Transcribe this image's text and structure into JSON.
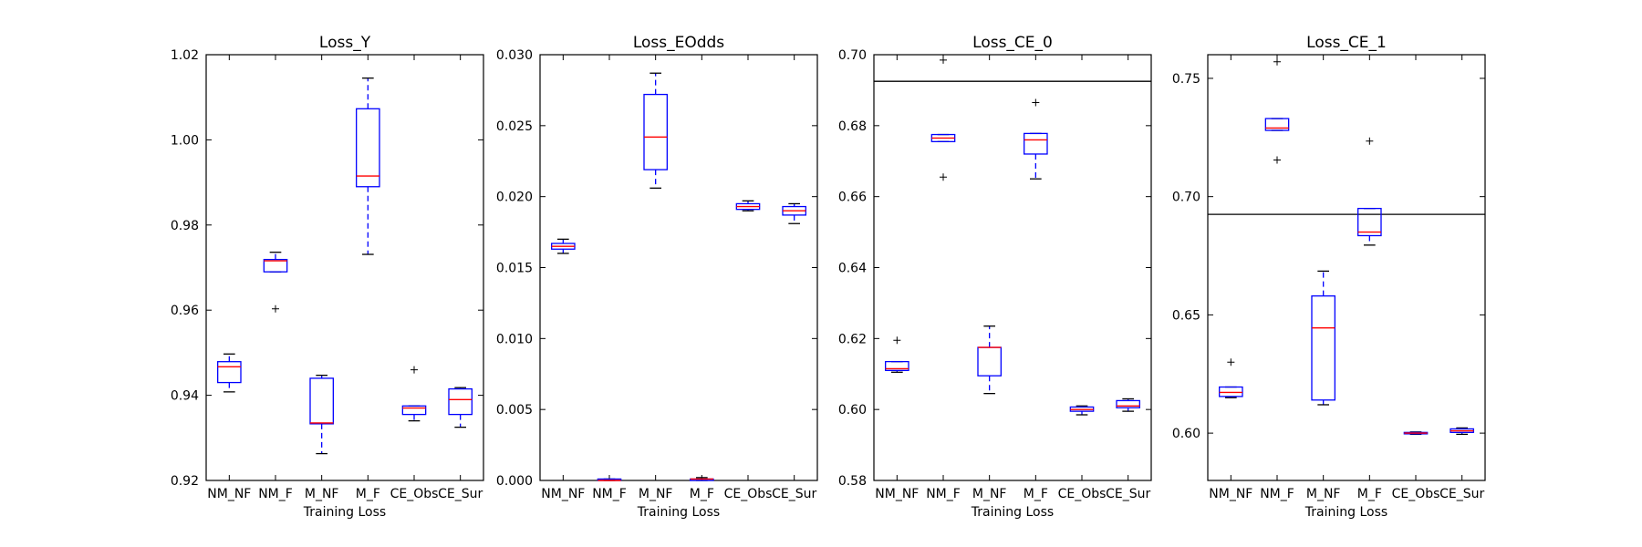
{
  "figure": {
    "box_color": "#0000ff",
    "median_color": "#ff0000",
    "flier_symbol": "+"
  },
  "chart_data": [
    {
      "type": "box",
      "title": "Loss_Y",
      "xlabel": "Training Loss",
      "ylabel": "",
      "categories": [
        "NM_NF",
        "NM_F",
        "M_NF",
        "M_F",
        "CE_Obs",
        "CE_Sur"
      ],
      "ylim": [
        0.92,
        1.02
      ],
      "yticks": [
        0.92,
        0.94,
        0.96,
        0.98,
        1.0,
        1.02
      ],
      "ytick_labels": [
        "0.92",
        "0.94",
        "0.96",
        "0.98",
        "1.00",
        "1.02"
      ],
      "hline": null,
      "boxes": [
        {
          "whislo": 0.9408,
          "q1": 0.943,
          "med": 0.9467,
          "q3": 0.9479,
          "whishi": 0.9497,
          "fliers": []
        },
        {
          "whislo": 0.969,
          "q1": 0.969,
          "med": 0.9716,
          "q3": 0.9719,
          "whishi": 0.9736,
          "fliers": [
            0.9603
          ]
        },
        {
          "whislo": 0.9263,
          "q1": 0.9333,
          "med": 0.9335,
          "q3": 0.944,
          "whishi": 0.9447,
          "fliers": []
        },
        {
          "whislo": 0.9731,
          "q1": 0.989,
          "med": 0.9915,
          "q3": 1.0073,
          "whishi": 1.0145,
          "fliers": []
        },
        {
          "whislo": 0.934,
          "q1": 0.9355,
          "med": 0.937,
          "q3": 0.9375,
          "whishi": 0.9375,
          "fliers": [
            0.946
          ]
        },
        {
          "whislo": 0.9325,
          "q1": 0.9355,
          "med": 0.939,
          "q3": 0.9415,
          "whishi": 0.9418,
          "fliers": []
        }
      ]
    },
    {
      "type": "box",
      "title": "Loss_EOdds",
      "xlabel": "Training Loss",
      "ylabel": "",
      "categories": [
        "NM_NF",
        "NM_F",
        "M_NF",
        "M_F",
        "CE_Obs",
        "CE_Sur"
      ],
      "ylim": [
        0.0,
        0.03
      ],
      "yticks": [
        0.0,
        0.005,
        0.01,
        0.015,
        0.02,
        0.025,
        0.03
      ],
      "ytick_labels": [
        "0.000",
        "0.005",
        "0.010",
        "0.015",
        "0.020",
        "0.025",
        "0.030"
      ],
      "hline": null,
      "boxes": [
        {
          "whislo": 0.016,
          "q1": 0.0163,
          "med": 0.0165,
          "q3": 0.0167,
          "whishi": 0.017,
          "fliers": []
        },
        {
          "whislo": 0.0,
          "q1": 0.0,
          "med": 0.0,
          "q3": 0.0001,
          "whishi": 0.0001,
          "fliers": []
        },
        {
          "whislo": 0.0206,
          "q1": 0.0219,
          "med": 0.0242,
          "q3": 0.0272,
          "whishi": 0.0287,
          "fliers": []
        },
        {
          "whislo": 0.0,
          "q1": 0.0,
          "med": 0.0001,
          "q3": 0.0001,
          "whishi": 0.0002,
          "fliers": []
        },
        {
          "whislo": 0.019,
          "q1": 0.0191,
          "med": 0.0193,
          "q3": 0.0195,
          "whishi": 0.0197,
          "fliers": []
        },
        {
          "whislo": 0.0181,
          "q1": 0.0187,
          "med": 0.019,
          "q3": 0.0193,
          "whishi": 0.0195,
          "fliers": []
        }
      ]
    },
    {
      "type": "box",
      "title": "Loss_CE_0",
      "xlabel": "Training Loss",
      "ylabel": "",
      "categories": [
        "NM_NF",
        "NM_F",
        "M_NF",
        "M_F",
        "CE_Obs",
        "CE_Sur"
      ],
      "ylim": [
        0.58,
        0.7
      ],
      "yticks": [
        0.58,
        0.6,
        0.62,
        0.64,
        0.66,
        0.68,
        0.7
      ],
      "ytick_labels": [
        "0.58",
        "0.60",
        "0.62",
        "0.64",
        "0.66",
        "0.68",
        "0.70"
      ],
      "hline": 0.6925,
      "boxes": [
        {
          "whislo": 0.6105,
          "q1": 0.611,
          "med": 0.6115,
          "q3": 0.6135,
          "whishi": 0.6135,
          "fliers": [
            0.6195
          ]
        },
        {
          "whislo": 0.6755,
          "q1": 0.6755,
          "med": 0.6765,
          "q3": 0.6775,
          "whishi": 0.6775,
          "fliers": [
            0.6655,
            0.6985
          ]
        },
        {
          "whislo": 0.6045,
          "q1": 0.6095,
          "med": 0.6175,
          "q3": 0.6175,
          "whishi": 0.6235,
          "fliers": []
        },
        {
          "whislo": 0.665,
          "q1": 0.672,
          "med": 0.676,
          "q3": 0.6778,
          "whishi": 0.6778,
          "fliers": [
            0.6865
          ]
        },
        {
          "whislo": 0.5985,
          "q1": 0.5995,
          "med": 0.6,
          "q3": 0.6007,
          "whishi": 0.601,
          "fliers": []
        },
        {
          "whislo": 0.5995,
          "q1": 0.6005,
          "med": 0.601,
          "q3": 0.6025,
          "whishi": 0.603,
          "fliers": []
        }
      ]
    },
    {
      "type": "box",
      "title": "Loss_CE_1",
      "xlabel": "Training Loss",
      "ylabel": "",
      "categories": [
        "NM_NF",
        "NM_F",
        "M_NF",
        "M_F",
        "CE_Obs",
        "CE_Sur"
      ],
      "ylim": [
        0.58,
        0.76
      ],
      "yticks": [
        0.6,
        0.65,
        0.7,
        0.75
      ],
      "ytick_labels": [
        "0.60",
        "0.65",
        "0.70",
        "0.75"
      ],
      "hline": 0.6925,
      "boxes": [
        {
          "whislo": 0.615,
          "q1": 0.6155,
          "med": 0.6172,
          "q3": 0.6195,
          "whishi": 0.6195,
          "fliers": [
            0.63
          ]
        },
        {
          "whislo": 0.728,
          "q1": 0.728,
          "med": 0.729,
          "q3": 0.733,
          "whishi": 0.733,
          "fliers": [
            0.7155,
            0.757
          ]
        },
        {
          "whislo": 0.612,
          "q1": 0.614,
          "med": 0.6445,
          "q3": 0.658,
          "whishi": 0.6685,
          "fliers": []
        },
        {
          "whislo": 0.6795,
          "q1": 0.6835,
          "med": 0.685,
          "q3": 0.695,
          "whishi": 0.695,
          "fliers": [
            0.7235
          ]
        },
        {
          "whislo": 0.5995,
          "q1": 0.5997,
          "med": 0.6,
          "q3": 0.6003,
          "whishi": 0.6005,
          "fliers": []
        },
        {
          "whislo": 0.5995,
          "q1": 0.6003,
          "med": 0.601,
          "q3": 0.6018,
          "whishi": 0.6022,
          "fliers": []
        }
      ]
    }
  ]
}
